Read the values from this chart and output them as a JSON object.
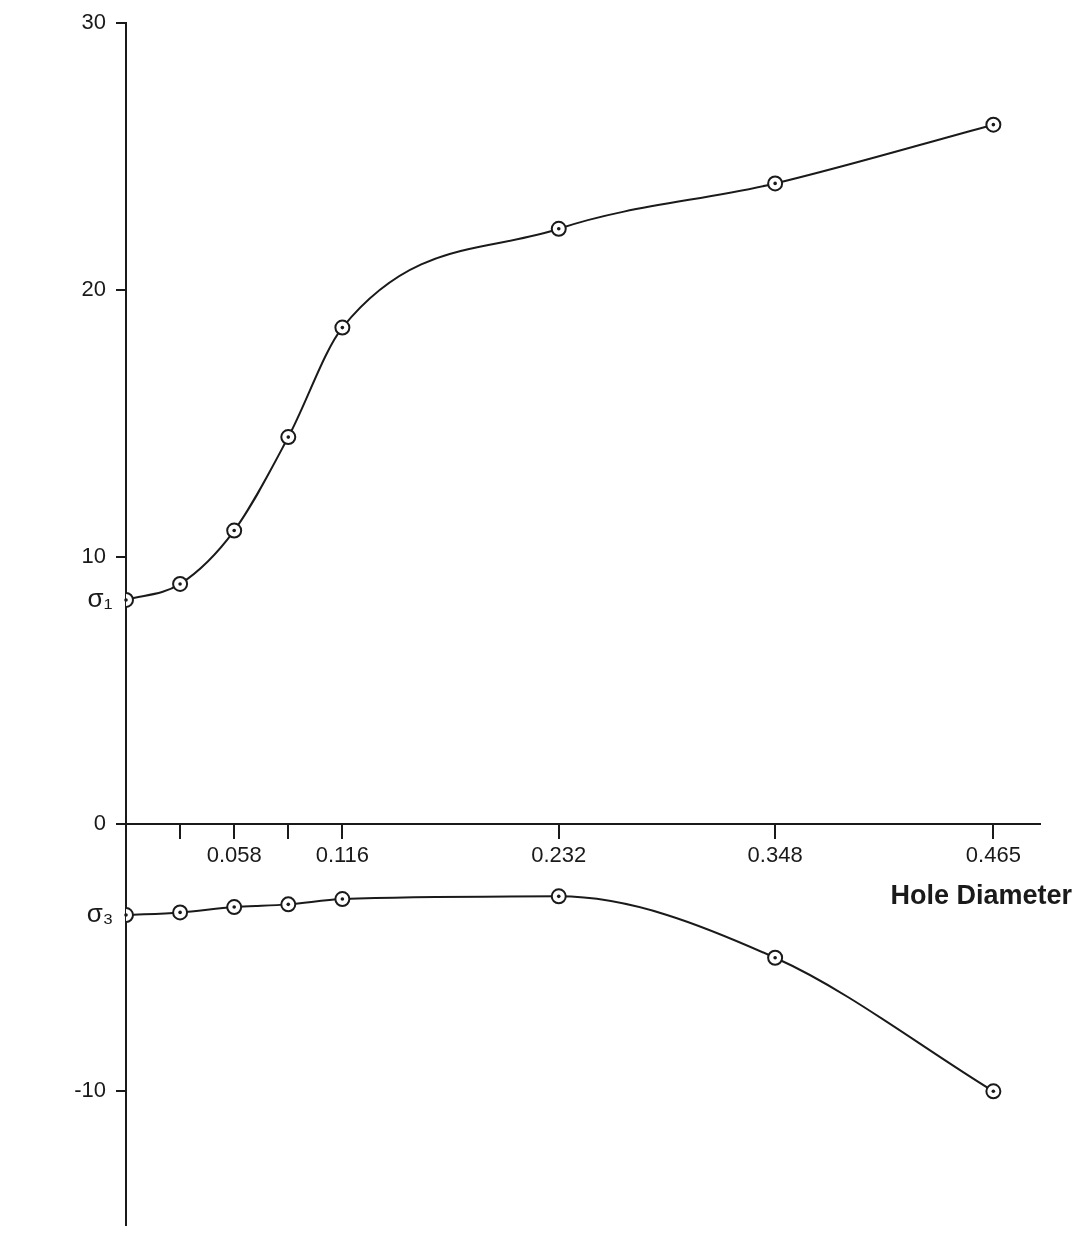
{
  "chart_data": {
    "type": "line",
    "xlabel": "Hole Diameter",
    "x": [
      0,
      0.029,
      0.058,
      0.087,
      0.116,
      0.232,
      0.348,
      0.465
    ],
    "series": [
      {
        "name": "σ₁",
        "color": "#1a1a1a",
        "values": [
          8.4,
          9.0,
          11.0,
          14.5,
          18.6,
          22.3,
          24.0,
          26.2
        ]
      },
      {
        "name": "σ₃",
        "color": "#1a1a1a",
        "values": [
          -3.4,
          -3.3,
          -3.1,
          -3.0,
          -2.8,
          -2.7,
          -5.0,
          -10.0
        ]
      }
    ],
    "xlim": [
      0,
      0.49
    ],
    "ylim": [
      -15,
      30
    ],
    "xticks": [
      {
        "value": 0.029,
        "label": null
      },
      0.058,
      {
        "value": 0.087,
        "label": null
      },
      0.116,
      0.232,
      0.348,
      0.465
    ],
    "yticks": [
      30,
      20,
      10,
      0,
      -10
    ],
    "grid": false,
    "legend": false,
    "marker": "circle",
    "line_style": "solid"
  }
}
